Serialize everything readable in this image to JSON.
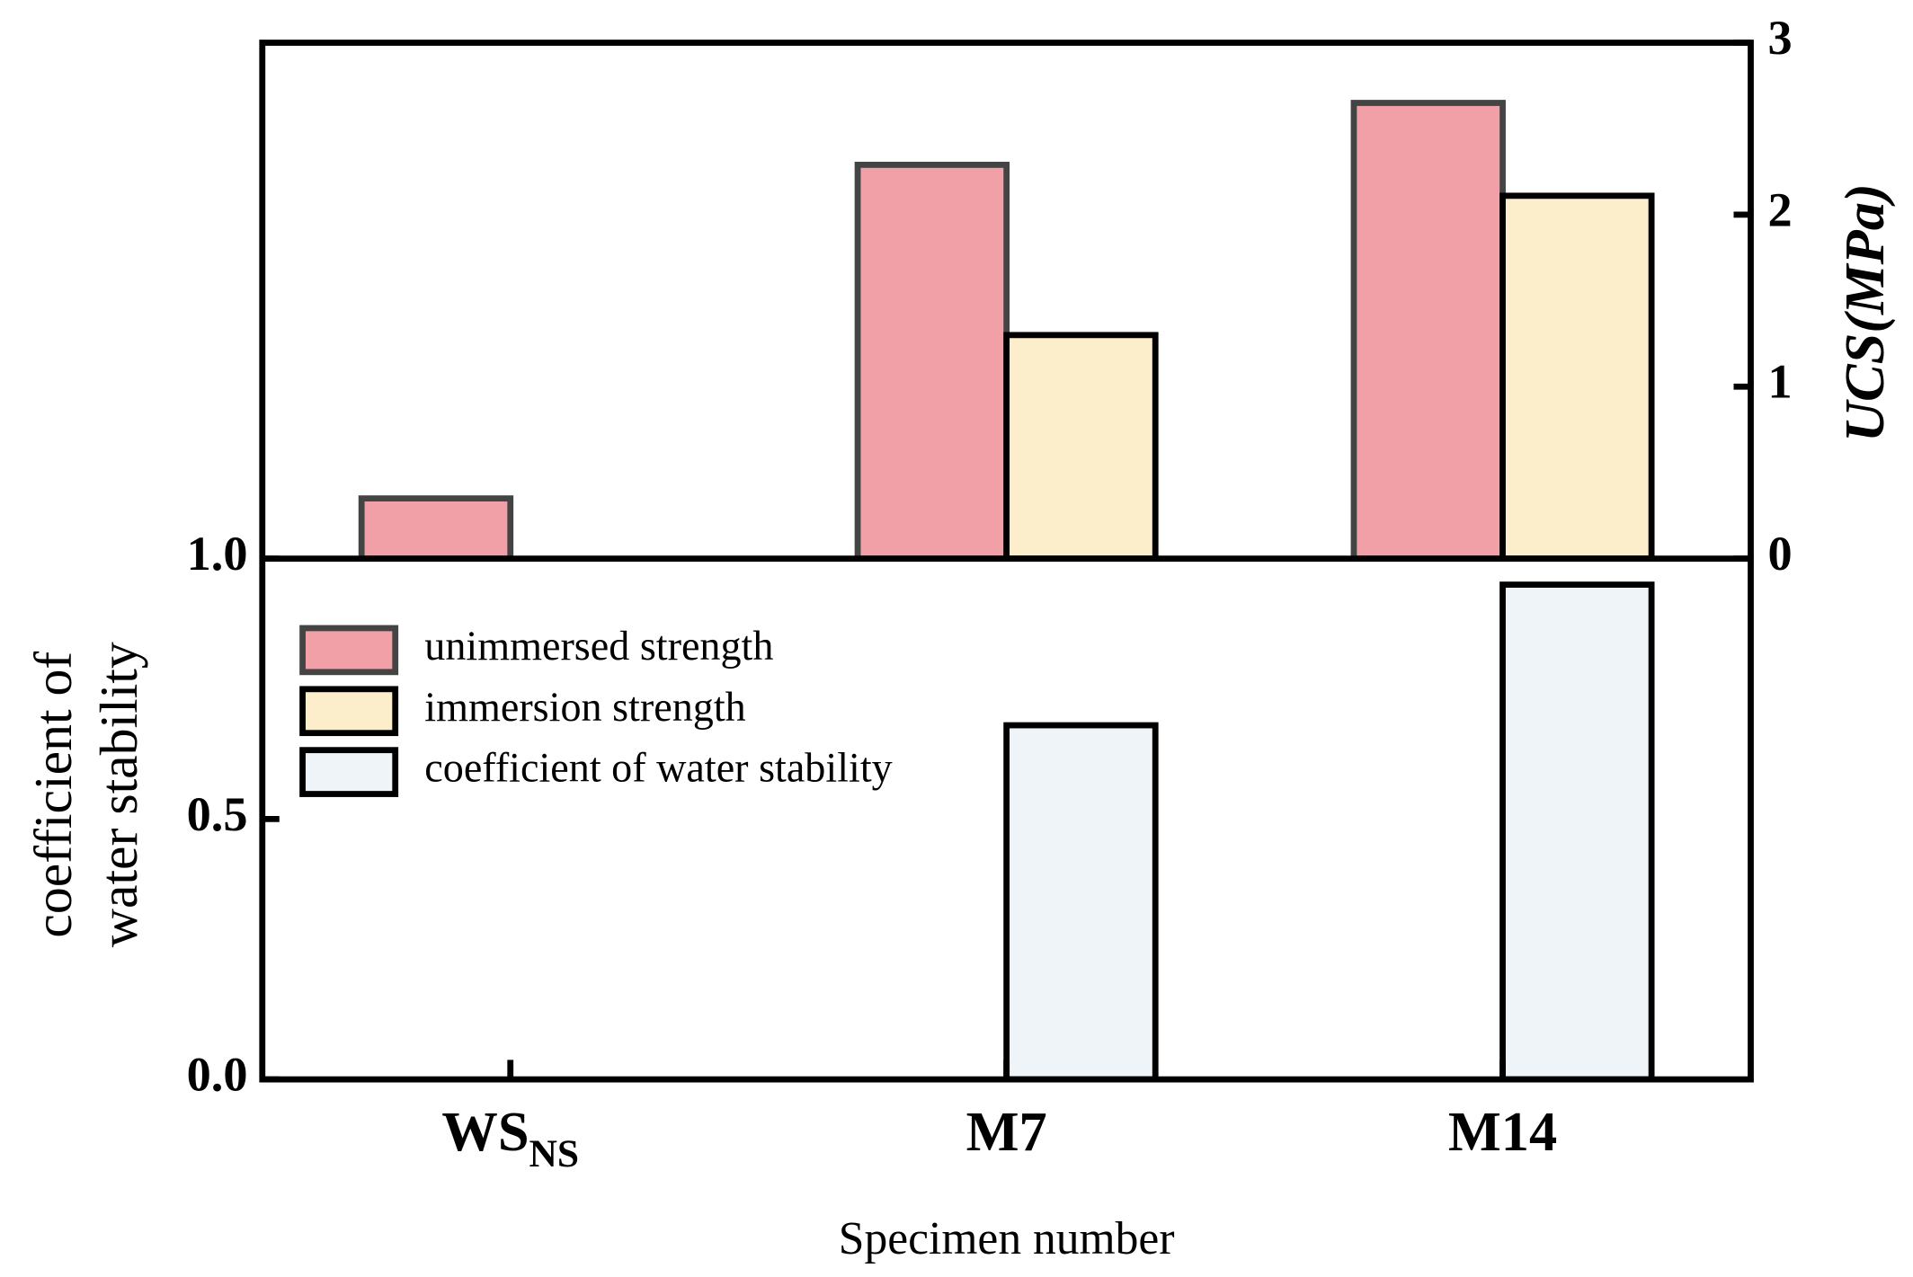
{
  "chart_data": {
    "type": "bar",
    "categories": [
      "WS",
      "M7",
      "M14"
    ],
    "category_subscripts": [
      "NS",
      null,
      null
    ],
    "xlabel": "Specimen number",
    "top_panel": {
      "ylabel": "UCS(MPa)",
      "ylim": [
        0,
        3
      ],
      "yticks": [
        0,
        1,
        2,
        3
      ],
      "series": [
        {
          "name": "unimmersed strength",
          "color": "#f2a0a8",
          "edgecolor": "#444444",
          "values": [
            0.35,
            2.29,
            2.65
          ]
        },
        {
          "name": "immersion strength",
          "color": "#fdeecb",
          "edgecolor": "#000000",
          "values": [
            null,
            1.3,
            2.11
          ]
        }
      ]
    },
    "bottom_panel": {
      "ylabel": [
        "coefficient of",
        "water stability"
      ],
      "ylim": [
        0,
        1.0
      ],
      "yticks": [
        {
          "value": 0,
          "label": "0.0"
        },
        {
          "value": 0.5,
          "label": "0.5"
        },
        {
          "value": 1.0,
          "label": "1.0"
        }
      ],
      "series": [
        {
          "name": "coefficient of water stability",
          "color": "#eff4f8",
          "edgecolor": "#000000",
          "values": [
            null,
            0.68,
            0.95
          ]
        }
      ]
    },
    "legend": "upper left"
  }
}
